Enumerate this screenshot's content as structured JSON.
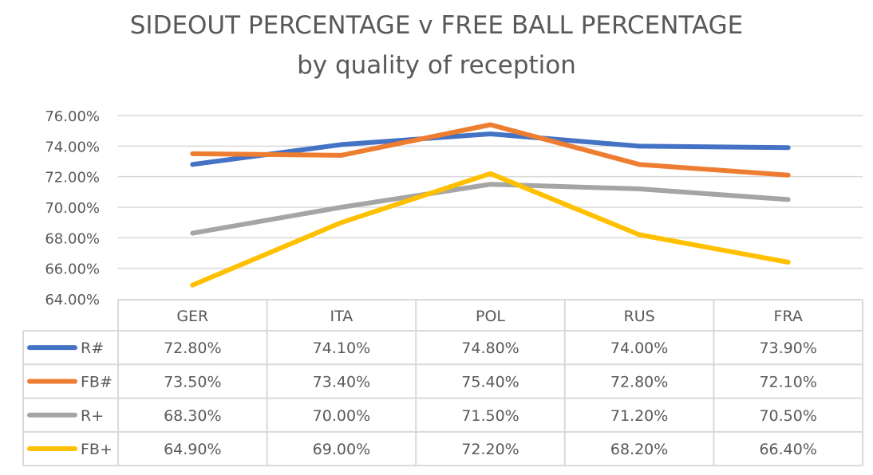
{
  "chart_data": {
    "type": "line",
    "title": "SIDEOUT PERCENTAGE v FREE BALL PERCENTAGE",
    "subtitle": "by quality of reception",
    "categories": [
      "GER",
      "ITA",
      "POL",
      "RUS",
      "FRA"
    ],
    "ylim": [
      64,
      76
    ],
    "yticks": [
      "76.00%",
      "74.00%",
      "72.00%",
      "70.00%",
      "68.00%",
      "66.00%",
      "64.00%"
    ],
    "grid": true,
    "legend": "data-table",
    "series": [
      {
        "name": "R#",
        "color": "#4472C4",
        "values": [
          72.8,
          74.1,
          74.8,
          74.0,
          73.9
        ],
        "labels": [
          "72.80%",
          "74.10%",
          "74.80%",
          "74.00%",
          "73.90%"
        ]
      },
      {
        "name": "FB#",
        "color": "#ED7D31",
        "values": [
          73.5,
          73.4,
          75.4,
          72.8,
          72.1
        ],
        "labels": [
          "73.50%",
          "73.40%",
          "75.40%",
          "72.80%",
          "72.10%"
        ]
      },
      {
        "name": "R+",
        "color": "#A5A5A5",
        "values": [
          68.3,
          70.0,
          71.5,
          71.2,
          70.5
        ],
        "labels": [
          "68.30%",
          "70.00%",
          "71.50%",
          "71.20%",
          "70.50%"
        ]
      },
      {
        "name": "FB+",
        "color": "#FFC000",
        "values": [
          64.9,
          69.0,
          72.2,
          68.2,
          66.4
        ],
        "labels": [
          "64.90%",
          "69.00%",
          "72.20%",
          "68.20%",
          "66.40%"
        ]
      }
    ]
  }
}
